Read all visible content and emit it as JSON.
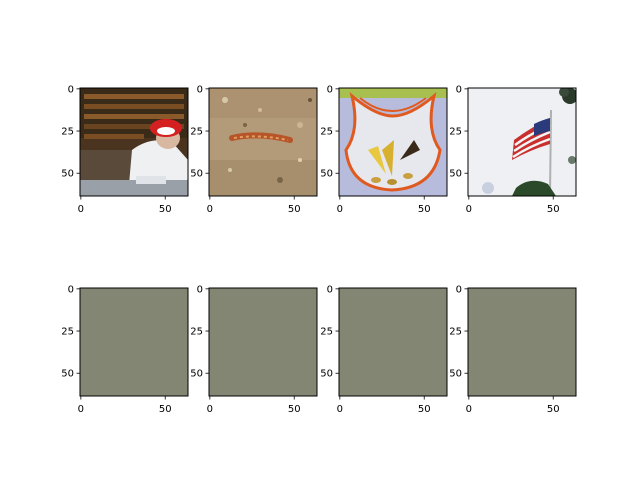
{
  "chart_data": [
    {
      "type": "image",
      "content": "person in red and white hat at a food counter",
      "xlim": [
        0,
        64
      ],
      "ylim": [
        64,
        0
      ],
      "xticks": [
        "0",
        "50"
      ],
      "yticks": [
        "0",
        "25",
        "50"
      ]
    },
    {
      "type": "image",
      "content": "caterpillar on sandy ground",
      "xlim": [
        0,
        64
      ],
      "ylim": [
        64,
        0
      ],
      "xticks": [
        "0",
        "50"
      ],
      "yticks": [
        "0",
        "25",
        "50"
      ]
    },
    {
      "type": "image",
      "content": "clear bib with orange trim holding corn cobs",
      "xlim": [
        0,
        64
      ],
      "ylim": [
        64,
        0
      ],
      "xticks": [
        "0",
        "50"
      ],
      "yticks": [
        "0",
        "25",
        "50"
      ]
    },
    {
      "type": "image",
      "content": "american flag on a pole against pale sky",
      "xlim": [
        0,
        64
      ],
      "ylim": [
        64,
        0
      ],
      "xticks": [
        "0",
        "50"
      ],
      "yticks": [
        "0",
        "25",
        "50"
      ]
    },
    {
      "type": "image",
      "content": "uniform gray-olive reconstruction",
      "xlim": [
        0,
        64
      ],
      "ylim": [
        64,
        0
      ],
      "xticks": [
        "0",
        "50"
      ],
      "yticks": [
        "0",
        "25",
        "50"
      ]
    },
    {
      "type": "image",
      "content": "uniform gray-olive reconstruction",
      "xlim": [
        0,
        64
      ],
      "ylim": [
        64,
        0
      ],
      "xticks": [
        "0",
        "50"
      ],
      "yticks": [
        "0",
        "25",
        "50"
      ]
    },
    {
      "type": "image",
      "content": "uniform gray-olive reconstruction",
      "xlim": [
        0,
        64
      ],
      "ylim": [
        64,
        0
      ],
      "xticks": [
        "0",
        "50"
      ],
      "yticks": [
        "0",
        "25",
        "50"
      ]
    },
    {
      "type": "image",
      "content": "uniform gray-olive reconstruction",
      "xlim": [
        0,
        64
      ],
      "ylim": [
        64,
        0
      ],
      "xticks": [
        "0",
        "50"
      ],
      "yticks": [
        "0",
        "25",
        "50"
      ]
    }
  ],
  "colors": {
    "reconstruction": "#838673",
    "axes": "#000000",
    "background": "#ffffff"
  }
}
